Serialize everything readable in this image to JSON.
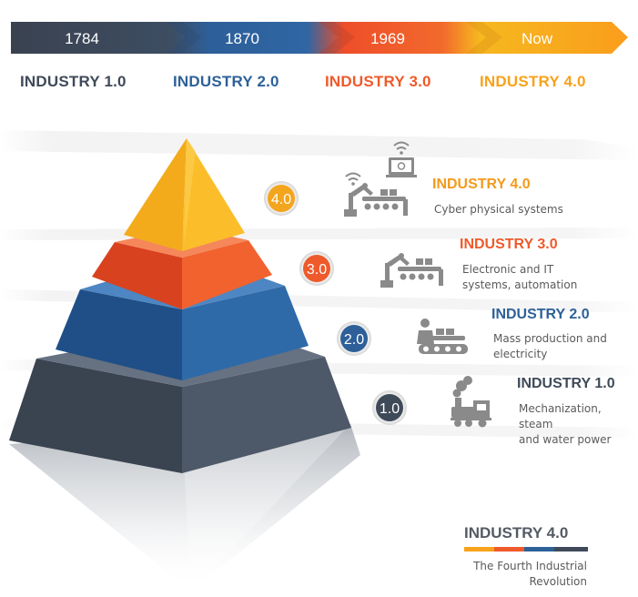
{
  "timeline": {
    "years": [
      "1784",
      "1870",
      "1969",
      "Now"
    ],
    "eras": [
      "INDUSTRY 1.0",
      "INDUSTRY 2.0",
      "INDUSTRY 3.0",
      "INDUSTRY 4.0"
    ]
  },
  "levels": [
    {
      "badge": "4.0",
      "title": "INDUSTRY 4.0",
      "desc": [
        "Cyber physical systems"
      ],
      "icon": "robot-arm-with-wifi-and-computer-icon"
    },
    {
      "badge": "3.0",
      "title": "INDUSTRY 3.0",
      "desc": [
        "Electronic and IT",
        "systems, automation"
      ],
      "icon": "robot-arm-conveyor-icon"
    },
    {
      "badge": "2.0",
      "title": "INDUSTRY 2.0",
      "desc": [
        "Mass production and",
        "electricity"
      ],
      "icon": "worker-conveyor-icon"
    },
    {
      "badge": "1.0",
      "title": "INDUSTRY 1.0",
      "desc": [
        "Mechanization, steam",
        "and water power"
      ],
      "icon": "steam-locomotive-icon"
    }
  ],
  "brand": {
    "title": "INDUSTRY 4.0",
    "subtitle": [
      "The Fourth Industrial",
      "Revolution"
    ]
  },
  "colors": {
    "era1": "#3f4a59",
    "era2": "#2d6199",
    "era3": "#ef5a2a",
    "era4": "#f8a21c",
    "icon_gray": "#888888",
    "text_gray": "#5a5a5a"
  }
}
